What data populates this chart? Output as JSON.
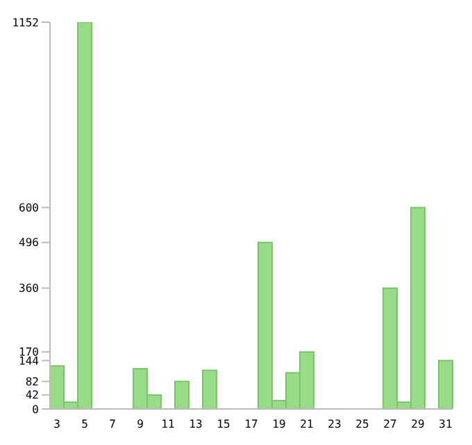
{
  "chart_data": {
    "type": "bar",
    "categories": [
      "3",
      null,
      "5",
      null,
      "7",
      null,
      "9",
      null,
      "11",
      null,
      "13",
      null,
      "15",
      null,
      "17",
      null,
      "19",
      null,
      "21",
      null,
      "23",
      null,
      "25",
      null,
      "27",
      null,
      "29",
      null,
      "31"
    ],
    "values": [
      128,
      20,
      1152,
      0,
      0,
      0,
      120,
      42,
      0,
      82,
      0,
      115,
      0,
      0,
      0,
      496,
      25,
      108,
      170,
      0,
      0,
      0,
      0,
      0,
      360,
      20,
      600,
      0,
      144
    ],
    "color": "#98dc88",
    "ylim": [
      0,
      1152
    ],
    "yticks": [
      0,
      42,
      82,
      144,
      170,
      360,
      496,
      600,
      1152
    ],
    "grid": false
  }
}
